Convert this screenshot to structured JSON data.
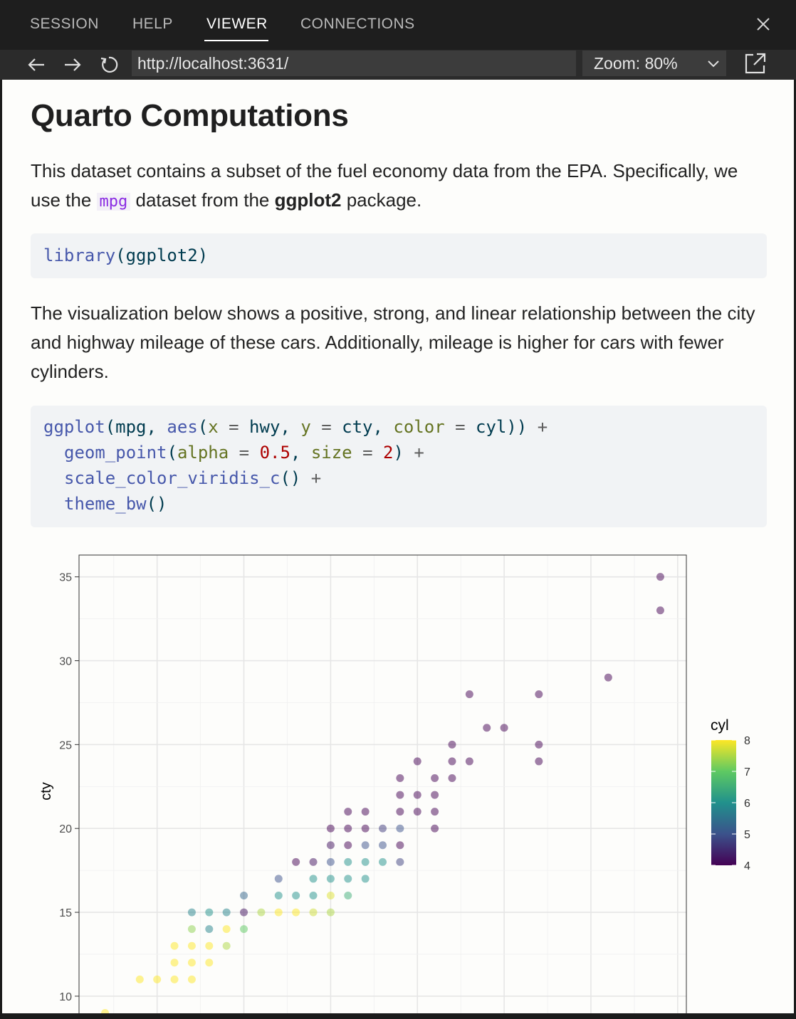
{
  "tabs": [
    "SESSION",
    "HELP",
    "VIEWER",
    "CONNECTIONS"
  ],
  "active_tab": "VIEWER",
  "nav": {
    "url": "http://localhost:3631/",
    "zoom_label": "Zoom: 80%"
  },
  "doc": {
    "title": "Quarto Computations",
    "intro_a": "This dataset contains a subset of the fuel economy data from the EPA. Specifically, we use the ",
    "intro_code": "mpg",
    "intro_b": " dataset from the ",
    "intro_bold": "ggplot2",
    "intro_c": " package.",
    "code1": {
      "fn": "library",
      "open": "(",
      "arg": "ggplot2",
      "close": ")"
    },
    "para2": "The visualization below shows a positive, strong, and linear relationship between the city and highway mileage of these cars. Additionally, mileage is higher for cars with fewer cylinders.",
    "code2": {
      "line1": {
        "fn1": "ggplot",
        "p1": "(",
        "a1": "mpg",
        "c1": ", ",
        "fn2": "aes",
        "p2": "(",
        "x": "x",
        "eq1": " = ",
        "hwy": "hwy",
        "c2": ", ",
        "y": "y",
        "eq2": " = ",
        "cty": "cty",
        "c3": ", ",
        "color": "color",
        "eq3": " = ",
        "cyl": "cyl",
        "close": "))",
        "plus": " +"
      },
      "line2": {
        "fn": "geom_point",
        "p": "(",
        "alpha": "alpha",
        "eq1": " = ",
        "alpha_val": "0.5",
        "c": ", ",
        "size": "size",
        "eq2": " = ",
        "size_val": "2",
        "close": ")",
        "plus": " +"
      },
      "line3": {
        "fn": "scale_color_viridis_c",
        "call": "()",
        "plus": " +"
      },
      "line4": {
        "fn": "theme_bw",
        "call": "()"
      }
    }
  },
  "chart_data": {
    "type": "scatter",
    "xlabel": "",
    "ylabel": "cty",
    "x_ticks": [],
    "y_ticks": [
      10,
      15,
      20,
      25,
      30,
      35
    ],
    "xlim": [
      10.5,
      45.5
    ],
    "ylim": [
      8.3,
      36.3
    ],
    "color_scale": "viridis",
    "legend": {
      "title": "cyl",
      "ticks": [
        4,
        5,
        6,
        7,
        8
      ],
      "position": "right"
    },
    "alpha": 0.5,
    "grid": true,
    "points": [
      {
        "x": 12,
        "y": 9,
        "cyl": 8
      },
      {
        "x": 14,
        "y": 11,
        "cyl": 8
      },
      {
        "x": 15,
        "y": 11,
        "cyl": 8
      },
      {
        "x": 16,
        "y": 11,
        "cyl": 8
      },
      {
        "x": 17,
        "y": 11,
        "cyl": 8
      },
      {
        "x": 16,
        "y": 12,
        "cyl": 8
      },
      {
        "x": 17,
        "y": 12,
        "cyl": 8
      },
      {
        "x": 18,
        "y": 12,
        "cyl": 8
      },
      {
        "x": 16,
        "y": 13,
        "cyl": 8
      },
      {
        "x": 17,
        "y": 13,
        "cyl": 8
      },
      {
        "x": 18,
        "y": 13,
        "cyl": 8
      },
      {
        "x": 19,
        "y": 13,
        "cyl": 7.5
      },
      {
        "x": 17,
        "y": 14,
        "cyl": 7.3
      },
      {
        "x": 18,
        "y": 14,
        "cyl": 5.8
      },
      {
        "x": 19,
        "y": 14,
        "cyl": 8
      },
      {
        "x": 20,
        "y": 14,
        "cyl": 7
      },
      {
        "x": 17,
        "y": 15,
        "cyl": 5.8
      },
      {
        "x": 18,
        "y": 15,
        "cyl": 6
      },
      {
        "x": 19,
        "y": 15,
        "cyl": 5.8
      },
      {
        "x": 20,
        "y": 15,
        "cyl": 4.2
      },
      {
        "x": 21,
        "y": 15,
        "cyl": 7.5
      },
      {
        "x": 22,
        "y": 15,
        "cyl": 8
      },
      {
        "x": 23,
        "y": 15,
        "cyl": 8
      },
      {
        "x": 24,
        "y": 15,
        "cyl": 7.7
      },
      {
        "x": 25,
        "y": 15,
        "cyl": 7.5
      },
      {
        "x": 20,
        "y": 16,
        "cyl": 5.3
      },
      {
        "x": 22,
        "y": 16,
        "cyl": 6
      },
      {
        "x": 23,
        "y": 16,
        "cyl": 6
      },
      {
        "x": 24,
        "y": 16,
        "cyl": 6
      },
      {
        "x": 25,
        "y": 16,
        "cyl": 7.8
      },
      {
        "x": 26,
        "y": 16,
        "cyl": 6.5
      },
      {
        "x": 22,
        "y": 17,
        "cyl": 5
      },
      {
        "x": 24,
        "y": 17,
        "cyl": 6
      },
      {
        "x": 25,
        "y": 17,
        "cyl": 6
      },
      {
        "x": 26,
        "y": 17,
        "cyl": 6
      },
      {
        "x": 27,
        "y": 17,
        "cyl": 6
      },
      {
        "x": 23,
        "y": 18,
        "cyl": 4
      },
      {
        "x": 24,
        "y": 18,
        "cyl": 4.2
      },
      {
        "x": 25,
        "y": 18,
        "cyl": 5
      },
      {
        "x": 26,
        "y": 18,
        "cyl": 6
      },
      {
        "x": 27,
        "y": 18,
        "cyl": 6
      },
      {
        "x": 28,
        "y": 18,
        "cyl": 6
      },
      {
        "x": 29,
        "y": 18,
        "cyl": 4.8
      },
      {
        "x": 25,
        "y": 19,
        "cyl": 4.2
      },
      {
        "x": 26,
        "y": 19,
        "cyl": 4
      },
      {
        "x": 27,
        "y": 19,
        "cyl": 5
      },
      {
        "x": 28,
        "y": 19,
        "cyl": 5
      },
      {
        "x": 29,
        "y": 19,
        "cyl": 4
      },
      {
        "x": 25,
        "y": 20,
        "cyl": 4
      },
      {
        "x": 26,
        "y": 20,
        "cyl": 4
      },
      {
        "x": 27,
        "y": 20,
        "cyl": 4
      },
      {
        "x": 28,
        "y": 20,
        "cyl": 4.7
      },
      {
        "x": 29,
        "y": 20,
        "cyl": 5
      },
      {
        "x": 31,
        "y": 20,
        "cyl": 4
      },
      {
        "x": 26,
        "y": 21,
        "cyl": 4
      },
      {
        "x": 27,
        "y": 21,
        "cyl": 4
      },
      {
        "x": 29,
        "y": 21,
        "cyl": 4
      },
      {
        "x": 30,
        "y": 21,
        "cyl": 4
      },
      {
        "x": 31,
        "y": 21,
        "cyl": 4
      },
      {
        "x": 29,
        "y": 22,
        "cyl": 4
      },
      {
        "x": 30,
        "y": 22,
        "cyl": 4
      },
      {
        "x": 31,
        "y": 22,
        "cyl": 4
      },
      {
        "x": 29,
        "y": 23,
        "cyl": 4
      },
      {
        "x": 31,
        "y": 23,
        "cyl": 4
      },
      {
        "x": 32,
        "y": 23,
        "cyl": 4
      },
      {
        "x": 32,
        "y": 24,
        "cyl": 4
      },
      {
        "x": 33,
        "y": 24,
        "cyl": 4
      },
      {
        "x": 30,
        "y": 24,
        "cyl": 4
      },
      {
        "x": 37,
        "y": 24,
        "cyl": 4
      },
      {
        "x": 32,
        "y": 25,
        "cyl": 4
      },
      {
        "x": 37,
        "y": 25,
        "cyl": 4
      },
      {
        "x": 34,
        "y": 26,
        "cyl": 4
      },
      {
        "x": 35,
        "y": 26,
        "cyl": 4
      },
      {
        "x": 33,
        "y": 28,
        "cyl": 4
      },
      {
        "x": 37,
        "y": 28,
        "cyl": 4
      },
      {
        "x": 41,
        "y": 29,
        "cyl": 4
      },
      {
        "x": 44,
        "y": 33,
        "cyl": 4
      },
      {
        "x": 44,
        "y": 35,
        "cyl": 4
      }
    ]
  },
  "colors": {
    "tabbar_bg": "#1e1e1e",
    "content_bg": "#fdfdfb",
    "code_bg": "#f1f3f5"
  },
  "icons": [
    "back-arrow-icon",
    "forward-arrow-icon",
    "refresh-icon",
    "close-icon",
    "chevron-down-icon",
    "popout-icon"
  ]
}
